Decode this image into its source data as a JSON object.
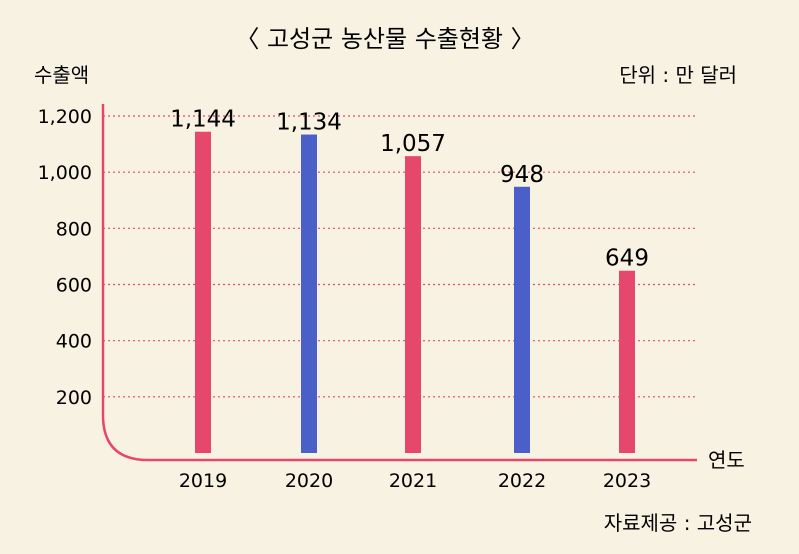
{
  "chart_data": {
    "type": "bar",
    "title": "〈 고성군 농산물 수출현황 〉",
    "ylabel": "수출액",
    "xlabel": "연도",
    "unit": "단위 : 만 달러",
    "source": "자료제공 : 고성군",
    "categories": [
      "2019",
      "2020",
      "2021",
      "2022",
      "2023"
    ],
    "values": [
      1144,
      1134,
      1057,
      948,
      649
    ],
    "value_labels": [
      "1,144",
      "1,134",
      "1,057",
      "948",
      "649"
    ],
    "bar_colors": [
      "#e5486c",
      "#4a5fc8",
      "#e5486c",
      "#4a5fc8",
      "#e5486c"
    ],
    "yticks": [
      200,
      400,
      600,
      800,
      1000,
      1200
    ],
    "ytick_labels": [
      "200",
      "400",
      "600",
      "800",
      "1,000",
      "1,200"
    ],
    "ylim": [
      0,
      1200
    ],
    "grid": true,
    "axis_color": "#e5486c",
    "grid_color": "#e5486c"
  }
}
